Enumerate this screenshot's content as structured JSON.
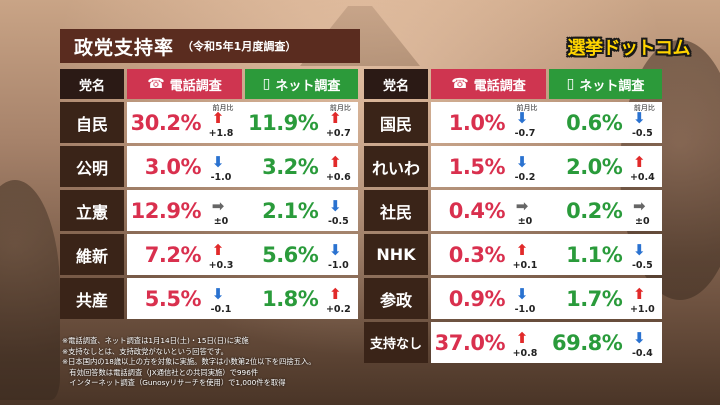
{
  "title": "政党支持率",
  "subtitle": "（令和5年1月度調査）",
  "logo": "選挙ドットコム",
  "headers": {
    "party": "党名",
    "phone": "電話調査",
    "net": "ネット調査",
    "prev_label": "前月比"
  },
  "colors": {
    "phone": "#d9304e",
    "net": "#2a9b3b",
    "up": "#e12a2a",
    "down": "#2a72d0",
    "flat": "#666666"
  },
  "left_rows": [
    {
      "party": "自民",
      "phone": "30.2%",
      "phone_dir": "up",
      "phone_diff": "+1.8",
      "net": "11.9%",
      "net_dir": "up",
      "net_diff": "+0.7"
    },
    {
      "party": "公明",
      "phone": "3.0%",
      "phone_dir": "down",
      "phone_diff": "-1.0",
      "net": "3.2%",
      "net_dir": "up",
      "net_diff": "+0.6"
    },
    {
      "party": "立憲",
      "phone": "12.9%",
      "phone_dir": "flat",
      "phone_diff": "±0",
      "net": "2.1%",
      "net_dir": "down",
      "net_diff": "-0.5"
    },
    {
      "party": "維新",
      "phone": "7.2%",
      "phone_dir": "up",
      "phone_diff": "+0.3",
      "net": "5.6%",
      "net_dir": "down",
      "net_diff": "-1.0"
    },
    {
      "party": "共産",
      "phone": "5.5%",
      "phone_dir": "down",
      "phone_diff": "-0.1",
      "net": "1.8%",
      "net_dir": "up",
      "net_diff": "+0.2"
    }
  ],
  "right_rows": [
    {
      "party": "国民",
      "phone": "1.0%",
      "phone_dir": "down",
      "phone_diff": "-0.7",
      "net": "0.6%",
      "net_dir": "down",
      "net_diff": "-0.5"
    },
    {
      "party": "れいわ",
      "phone": "1.5%",
      "phone_dir": "down",
      "phone_diff": "-0.2",
      "net": "2.0%",
      "net_dir": "up",
      "net_diff": "+0.4"
    },
    {
      "party": "社民",
      "phone": "0.4%",
      "phone_dir": "flat",
      "phone_diff": "±0",
      "net": "0.2%",
      "net_dir": "flat",
      "net_diff": "±0"
    },
    {
      "party": "NHK",
      "phone": "0.3%",
      "phone_dir": "up",
      "phone_diff": "+0.1",
      "net": "1.1%",
      "net_dir": "down",
      "net_diff": "-0.5"
    },
    {
      "party": "参政",
      "phone": "0.9%",
      "phone_dir": "down",
      "phone_diff": "-1.0",
      "net": "1.7%",
      "net_dir": "up",
      "net_diff": "+1.0"
    },
    {
      "party": "支持なし",
      "phone": "37.0%",
      "phone_dir": "up",
      "phone_diff": "+0.8",
      "net": "69.8%",
      "net_dir": "down",
      "net_diff": "-0.4"
    }
  ],
  "notes": [
    "※電話調査、ネット調査は1月14日(土)・15日(日)に実施",
    "※支持なしとは、支持政党がないという回答です。",
    "※日本国内の18歳以上の方を対象に実施。数字は小数第2位以下を四捨五入。",
    "　有効回答数は電話調査（JX通信社との共同実施）で996件",
    "　インターネット調査（Gunosyリサーチを使用）で1,000件を取得"
  ]
}
